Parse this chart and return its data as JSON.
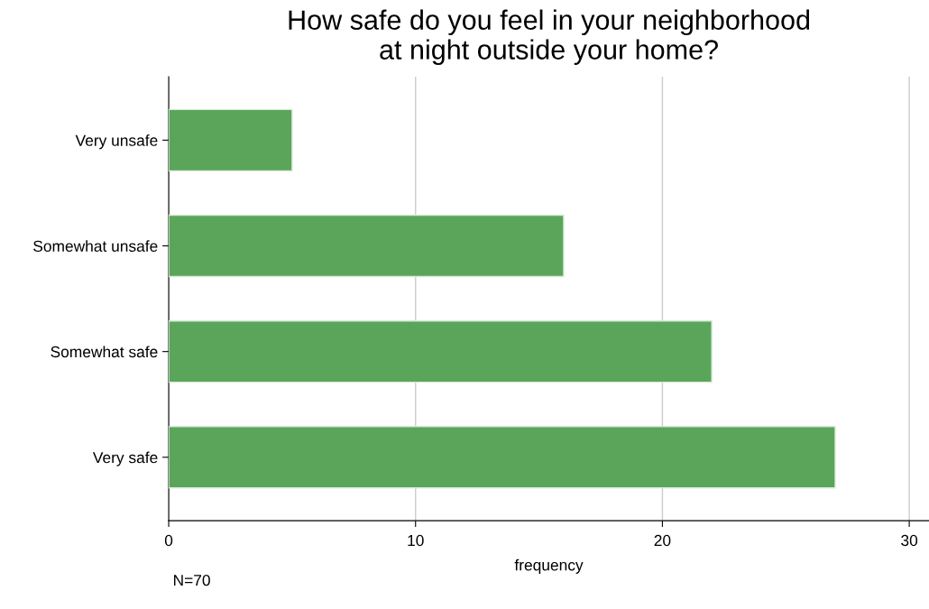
{
  "chart_data": {
    "type": "bar",
    "orientation": "horizontal",
    "title": "How safe do you feel in your neighborhood\nat night outside your home?",
    "categories": [
      "Very unsafe",
      "Somewhat unsafe",
      "Somewhat safe",
      "Very safe"
    ],
    "values": [
      5,
      16,
      22,
      27
    ],
    "color": "#5aa55a",
    "xlabel": "frequency",
    "xlim": [
      0,
      30.8
    ],
    "xticks": [
      0,
      10,
      20,
      30
    ],
    "grid": "x",
    "annotations": [
      "N=70"
    ]
  }
}
